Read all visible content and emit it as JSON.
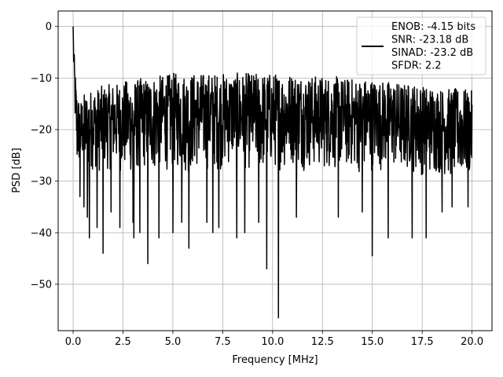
{
  "chart_data": {
    "type": "line",
    "xlabel": "Frequency [MHz]",
    "ylabel": "PSD [dB]",
    "xlim": [
      -0.75,
      21.0
    ],
    "ylim": [
      -59.0,
      3.0
    ],
    "xticks": [
      0.0,
      2.5,
      5.0,
      7.5,
      10.0,
      12.5,
      15.0,
      17.5,
      20.0
    ],
    "xtick_labels": [
      "0.0",
      "2.5",
      "5.0",
      "7.5",
      "10.0",
      "12.5",
      "15.0",
      "17.5",
      "20.0"
    ],
    "yticks": [
      0,
      -10,
      -20,
      -30,
      -40,
      -50
    ],
    "ytick_labels": [
      "0",
      "−10",
      "−20",
      "−30",
      "−40",
      "−50"
    ],
    "grid": true,
    "legend_position": "top-right",
    "series": [
      {
        "name": "ENOB: -4.15 bits\nSNR: -23.18 dB\nSINAD: -23.2 dB\nSFDR: 2.2",
        "color": "#000000",
        "x": [
          0.0,
          0.05,
          0.1,
          0.15,
          0.2,
          0.25,
          0.3,
          0.4,
          0.5,
          0.6,
          0.7,
          0.8,
          1.0,
          1.2,
          1.4,
          1.6,
          2.0,
          2.3,
          2.5,
          3.0,
          3.4,
          3.7,
          4.0,
          4.3,
          4.6,
          5.0,
          5.4,
          5.8,
          6.2,
          6.6,
          7.0,
          7.5,
          8.0,
          8.2,
          8.6,
          9.0,
          9.4,
          9.7,
          10.0,
          10.3,
          10.6,
          11.0,
          11.4,
          11.8,
          12.2,
          12.6,
          13.0,
          13.5,
          14.0,
          14.5,
          15.0,
          15.3,
          15.7,
          16.0,
          16.5,
          16.9,
          17.2,
          17.6,
          18.0,
          18.5,
          19.0,
          19.5,
          20.0
        ],
        "upper": [
          0.0,
          -5.0,
          -8.0,
          -11.0,
          -12.0,
          -13.0,
          -14.0,
          -14.0,
          -13.0,
          -13.0,
          -12.5,
          -12.5,
          -12.0,
          -12.0,
          -11.5,
          -11.5,
          -11.0,
          -11.0,
          -10.5,
          -10.5,
          -10.0,
          -10.0,
          -9.5,
          -9.5,
          -9.5,
          -9.0,
          -9.0,
          -9.0,
          -9.0,
          -9.0,
          -9.0,
          -9.0,
          -9.0,
          -9.0,
          -9.0,
          -9.0,
          -9.0,
          -9.0,
          -9.0,
          -9.0,
          -9.0,
          -9.0,
          -9.0,
          -9.5,
          -9.5,
          -9.5,
          -9.5,
          -10.0,
          -10.0,
          -10.0,
          -10.0,
          -10.5,
          -10.5,
          -10.5,
          -11.0,
          -11.0,
          -11.0,
          -11.5,
          -11.5,
          -12.0,
          -12.0,
          -12.0,
          -12.5
        ],
        "lower": [
          -5.0,
          -13.0,
          -20.0,
          -25.0,
          -30.0,
          -29.0,
          -28.0,
          -30.0,
          -27.0,
          -29.0,
          -30.0,
          -28.0,
          -28.0,
          -28.0,
          -29.0,
          -28.0,
          -28.0,
          -28.0,
          -29.0,
          -29.0,
          -28.0,
          -28.0,
          -29.0,
          -28.0,
          -28.0,
          -28.0,
          -28.0,
          -29.0,
          -28.0,
          -28.0,
          -28.0,
          -28.0,
          -27.0,
          -28.0,
          -28.0,
          -28.0,
          -29.0,
          -28.0,
          -28.0,
          -28.0,
          -28.0,
          -27.0,
          -28.0,
          -28.0,
          -28.0,
          -28.0,
          -28.0,
          -28.0,
          -28.0,
          -29.0,
          -28.0,
          -28.0,
          -28.0,
          -28.0,
          -29.0,
          -28.0,
          -29.0,
          -29.0,
          -29.0,
          -29.0,
          -30.0,
          -30.0,
          -30.0
        ],
        "dips": [
          [
            0.35,
            -33.0
          ],
          [
            0.55,
            -35.0
          ],
          [
            0.72,
            -37.0
          ],
          [
            0.82,
            -41.0
          ],
          [
            1.2,
            -39.0
          ],
          [
            1.5,
            -44.0
          ],
          [
            1.9,
            -36.0
          ],
          [
            2.35,
            -39.0
          ],
          [
            3.0,
            -38.0
          ],
          [
            3.05,
            -41.0
          ],
          [
            3.35,
            -40.0
          ],
          [
            3.75,
            -46.0
          ],
          [
            4.3,
            -41.0
          ],
          [
            5.0,
            -40.0
          ],
          [
            5.45,
            -38.0
          ],
          [
            5.8,
            -43.0
          ],
          [
            6.7,
            -38.0
          ],
          [
            7.0,
            -40.0
          ],
          [
            7.3,
            -39.0
          ],
          [
            8.2,
            -41.0
          ],
          [
            8.6,
            -40.0
          ],
          [
            9.3,
            -38.0
          ],
          [
            9.7,
            -47.0
          ],
          [
            10.3,
            -56.5
          ],
          [
            11.2,
            -37.0
          ],
          [
            13.3,
            -37.0
          ],
          [
            14.5,
            -36.0
          ],
          [
            15.0,
            -44.5
          ],
          [
            15.8,
            -41.0
          ],
          [
            17.0,
            -41.0
          ],
          [
            17.7,
            -41.0
          ],
          [
            18.5,
            -36.0
          ],
          [
            19.0,
            -35.0
          ],
          [
            19.8,
            -35.0
          ]
        ]
      }
    ]
  }
}
